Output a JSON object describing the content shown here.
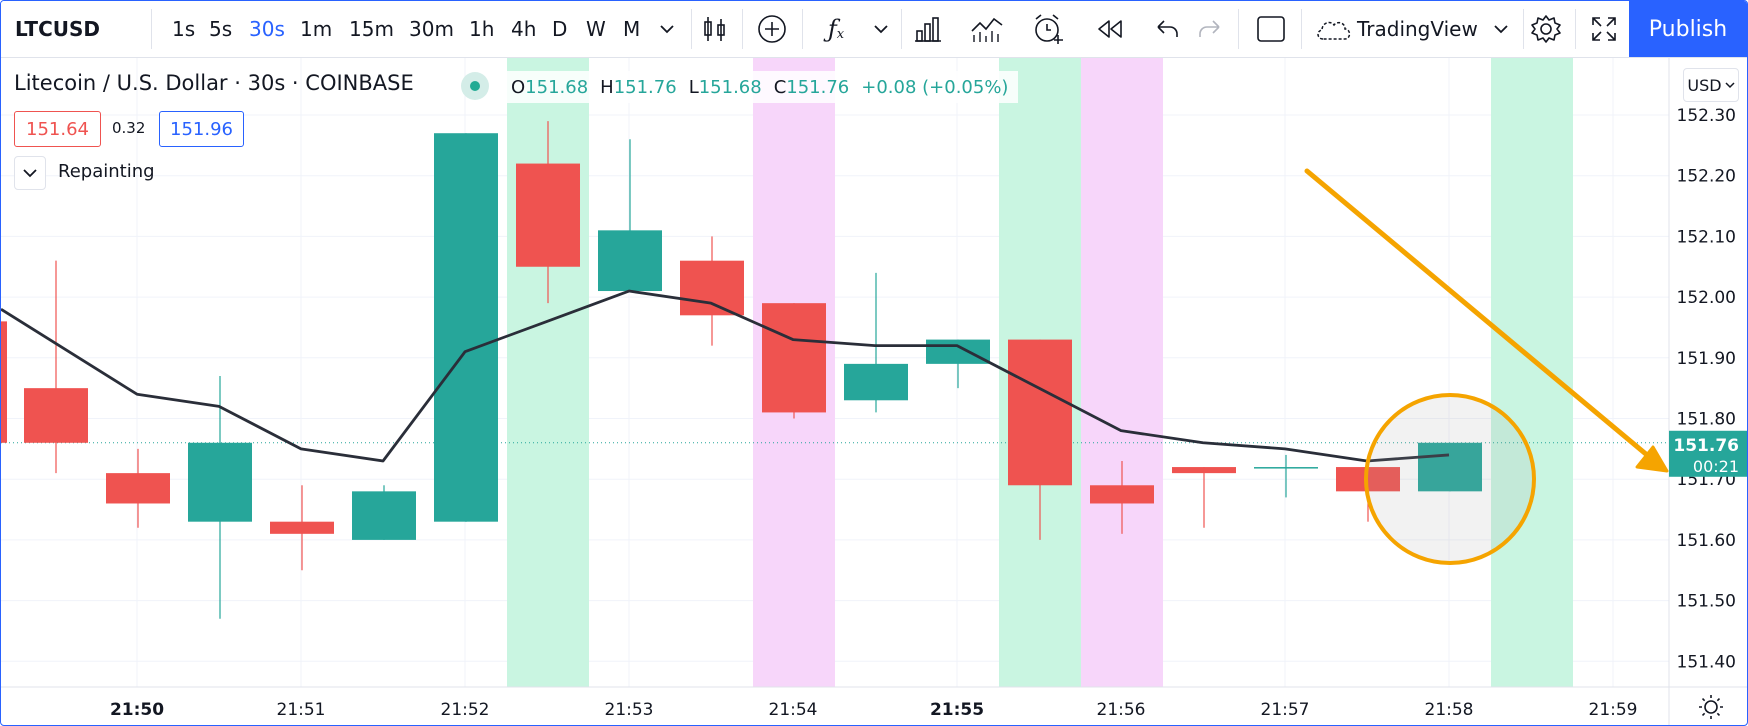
{
  "toolbar": {
    "symbol": "LTCUSD",
    "intervals": [
      "1s",
      "5s",
      "30s",
      "1m",
      "15m",
      "30m",
      "1h",
      "4h",
      "D",
      "W",
      "M"
    ],
    "active_interval": "30s",
    "layout_name": "TradingView",
    "publish_label": "Publish",
    "icons": [
      "chevron-down-icon",
      "candles-icon",
      "add-icon",
      "indicators-fx-icon",
      "chevron-down-icon",
      "bar-chart-icon",
      "compare-icon",
      "alert-icon",
      "replay-icon",
      "undo-icon",
      "redo-icon",
      "rectangle-icon",
      "cloud-icon",
      "chevron-down-icon",
      "gear-icon",
      "fullscreen-icon"
    ]
  },
  "legend": {
    "title": "Litecoin / U.S. Dollar · 30s · COINBASE",
    "open_label": "O",
    "open": "151.68",
    "high_label": "H",
    "high": "151.76",
    "low_label": "L",
    "low": "151.68",
    "close_label": "C",
    "close": "151.76",
    "change": "+0.08 (+0.05%)",
    "bid": "151.64",
    "spread": "0.32",
    "ask": "151.96",
    "indicator_label": "Repainting"
  },
  "price_axis": {
    "currency": "USD",
    "current_price": "151.76",
    "countdown": "00:21"
  },
  "colors": {
    "up": "#26a69a",
    "down": "#ef5350",
    "bg_green": "#c9f5e1",
    "bg_pink": "#f7d6fa",
    "annotation": "#f5a400",
    "line": "#2a2e39",
    "accent": "#2962ff"
  },
  "chart_data": {
    "type": "candlestick",
    "y_ticks": [
      "152.30",
      "152.20",
      "152.10",
      "152.00",
      "151.90",
      "151.80",
      "151.70",
      "151.60",
      "151.50",
      "151.40"
    ],
    "x_ticks": [
      {
        "t": 21.833,
        "label": "21:50",
        "bold": true
      },
      {
        "t": 21.85,
        "label": "21:51",
        "bold": false
      },
      {
        "t": 21.867,
        "label": "21:52",
        "bold": false
      },
      {
        "t": 21.883,
        "label": "21:53",
        "bold": false
      },
      {
        "t": 21.9,
        "label": "21:54",
        "bold": false
      },
      {
        "t": 21.917,
        "label": "21:55",
        "bold": true
      },
      {
        "t": 21.933,
        "label": "21:56",
        "bold": false
      },
      {
        "t": 21.95,
        "label": "21:57",
        "bold": false
      },
      {
        "t": 21.967,
        "label": "21:58",
        "bold": false
      },
      {
        "t": 21.983,
        "label": "21:59",
        "bold": false
      }
    ],
    "candles": [
      {
        "o": 151.96,
        "h": 151.98,
        "l": 151.74,
        "c": 151.76
      },
      {
        "o": 151.85,
        "h": 152.06,
        "l": 151.71,
        "c": 151.76
      },
      {
        "o": 151.71,
        "h": 151.75,
        "l": 151.62,
        "c": 151.66
      },
      {
        "o": 151.63,
        "h": 151.87,
        "l": 151.47,
        "c": 151.76
      },
      {
        "o": 151.63,
        "h": 151.69,
        "l": 151.55,
        "c": 151.61
      },
      {
        "o": 151.6,
        "h": 151.69,
        "l": 151.6,
        "c": 151.68
      },
      {
        "o": 151.63,
        "h": 152.27,
        "l": 151.63,
        "c": 152.27
      },
      {
        "o": 152.22,
        "h": 152.29,
        "l": 151.99,
        "c": 152.05
      },
      {
        "o": 152.01,
        "h": 152.26,
        "l": 152.01,
        "c": 152.11
      },
      {
        "o": 152.06,
        "h": 152.1,
        "l": 151.92,
        "c": 151.97
      },
      {
        "o": 151.99,
        "h": 151.99,
        "l": 151.8,
        "c": 151.81
      },
      {
        "o": 151.83,
        "h": 152.04,
        "l": 151.81,
        "c": 151.89
      },
      {
        "o": 151.89,
        "h": 151.93,
        "l": 151.85,
        "c": 151.93
      },
      {
        "o": 151.93,
        "h": 151.93,
        "l": 151.6,
        "c": 151.69
      },
      {
        "o": 151.69,
        "h": 151.73,
        "l": 151.61,
        "c": 151.66
      },
      {
        "o": 151.72,
        "h": 151.72,
        "l": 151.62,
        "c": 151.71
      },
      {
        "o": 151.72,
        "h": 151.74,
        "l": 151.67,
        "c": 151.72
      },
      {
        "o": 151.72,
        "h": 151.72,
        "l": 151.63,
        "c": 151.68
      },
      {
        "o": 151.68,
        "h": 151.76,
        "l": 151.68,
        "c": 151.76
      }
    ],
    "line_values": [
      151.98,
      151.84,
      151.82,
      151.75,
      151.73,
      151.91,
      151.96,
      152.01,
      151.99,
      151.93,
      151.92,
      151.92,
      151.85,
      151.78,
      151.76,
      151.75,
      151.73,
      151.74
    ],
    "line_start_index": 0,
    "background_highlights": [
      {
        "bar": 6,
        "color": "green"
      },
      {
        "bar": 9,
        "color": "pink"
      },
      {
        "bar": 12,
        "color": "green"
      },
      {
        "bar": 13,
        "color": "pink"
      },
      {
        "bar": 18,
        "color": "green"
      }
    ],
    "last_price": 151.76,
    "ylim": [
      151.37,
      152.34
    ]
  }
}
